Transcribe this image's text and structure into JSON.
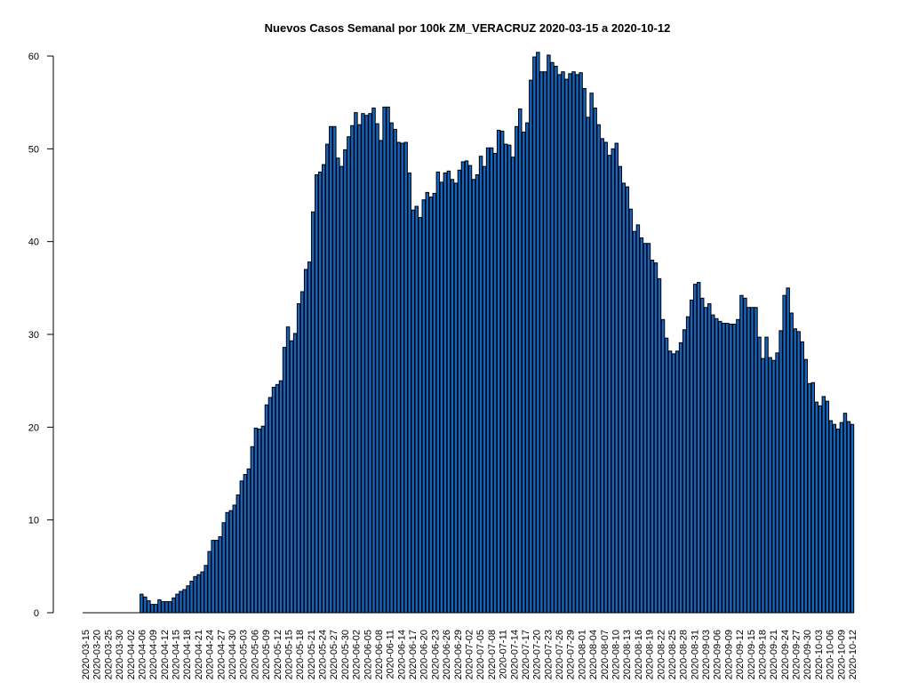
{
  "chart_data": {
    "type": "bar",
    "title": "Nuevos Casos Semanal por 100k ZM_VERACRUZ 2020-03-15 a 2020-10-12",
    "xlabel": "",
    "ylabel": "",
    "start_date": "2020-03-15",
    "tick_labels": [
      "2020-03-15",
      "2020-03-20",
      "2020-03-25",
      "2020-03-30",
      "2020-04-02",
      "2020-04-06",
      "2020-04-09",
      "2020-04-12",
      "2020-04-15",
      "2020-04-18",
      "2020-04-21",
      "2020-04-24",
      "2020-04-27",
      "2020-04-30",
      "2020-05-03",
      "2020-05-06",
      "2020-05-09",
      "2020-05-12",
      "2020-05-15",
      "2020-05-18",
      "2020-05-21",
      "2020-05-24",
      "2020-05-27",
      "2020-05-30",
      "2020-06-02",
      "2020-06-05",
      "2020-06-08",
      "2020-06-11",
      "2020-06-14",
      "2020-06-17",
      "2020-06-20",
      "2020-06-23",
      "2020-06-26",
      "2020-06-29",
      "2020-07-02",
      "2020-07-05",
      "2020-07-08",
      "2020-07-11",
      "2020-07-14",
      "2020-07-17",
      "2020-07-20",
      "2020-07-23",
      "2020-07-26",
      "2020-07-29",
      "2020-08-01",
      "2020-08-04",
      "2020-08-07",
      "2020-08-10",
      "2020-08-13",
      "2020-08-16",
      "2020-08-19",
      "2020-08-22",
      "2020-08-25",
      "2020-08-28",
      "2020-08-31",
      "2020-09-03",
      "2020-09-06",
      "2020-09-09",
      "2020-09-12",
      "2020-09-15",
      "2020-09-18",
      "2020-09-21",
      "2020-09-24",
      "2020-09-27",
      "2020-09-30",
      "2020-10-03",
      "2020-10-06",
      "2020-10-09",
      "2020-10-12"
    ],
    "values": [
      0,
      0,
      0,
      0,
      0,
      0,
      0,
      0,
      0,
      0,
      0,
      0,
      0,
      0,
      0,
      0,
      2.0,
      1.7,
      1.3,
      0.9,
      0.9,
      1.4,
      1.2,
      1.2,
      1.2,
      1.6,
      2.0,
      2.3,
      2.5,
      2.9,
      3.4,
      3.9,
      4.1,
      4.4,
      5.1,
      6.6,
      7.8,
      7.8,
      8.2,
      9.7,
      10.8,
      11.0,
      11.6,
      12.7,
      14.2,
      14.9,
      15.5,
      17.9,
      19.9,
      19.8,
      20.1,
      22.4,
      23.2,
      24.3,
      24.6,
      25.0,
      28.6,
      30.8,
      29.3,
      30.1,
      33.3,
      34.6,
      37.0,
      37.8,
      43.2,
      47.2,
      47.5,
      48.3,
      50.5,
      52.4,
      52.4,
      49.0,
      48.1,
      49.9,
      51.3,
      52.5,
      53.9,
      52.6,
      53.8,
      53.6,
      53.8,
      54.4,
      52.7,
      50.9,
      54.5,
      54.5,
      52.8,
      52.1,
      50.7,
      50.6,
      50.7,
      47.4,
      43.4,
      43.8,
      42.6,
      44.5,
      45.3,
      44.8,
      45.2,
      47.5,
      46.4,
      47.4,
      47.6,
      46.7,
      46.3,
      47.7,
      48.6,
      48.7,
      48.2,
      46.7,
      47.2,
      49.2,
      48.1,
      50.1,
      50.1,
      49.5,
      52.0,
      51.9,
      50.5,
      50.4,
      49.1,
      52.4,
      54.3,
      51.8,
      52.8,
      57.4,
      59.9,
      60.4,
      58.3,
      58.3,
      60.1,
      59.3,
      58.9,
      58.0,
      58.3,
      57.5,
      58.1,
      58.3,
      58.0,
      58.2,
      56.5,
      53.4,
      56.0,
      54.4,
      52.6,
      51.1,
      50.7,
      49.3,
      50.0,
      50.6,
      48.1,
      46.3,
      45.9,
      43.5,
      41.1,
      41.8,
      40.4,
      39.8,
      39.8,
      38.0,
      37.7,
      36.0,
      31.6,
      29.6,
      28.2,
      27.9,
      28.2,
      29.1,
      30.5,
      31.9,
      33.7,
      35.4,
      35.6,
      33.9,
      32.9,
      33.3,
      32.1,
      31.7,
      31.4,
      31.2,
      31.2,
      31.1,
      31.1,
      31.6,
      34.2,
      33.9,
      32.9,
      32.9,
      32.9,
      29.7,
      27.4,
      29.7,
      27.5,
      27.2,
      28.0,
      30.4,
      34.2,
      35.0,
      32.3,
      30.6,
      30.3,
      29.2,
      27.3,
      24.7,
      24.8,
      22.7,
      22.3,
      23.3,
      22.8,
      20.7,
      20.3,
      19.8,
      20.5,
      21.5,
      20.6,
      20.3
    ],
    "ylim": [
      0,
      60
    ],
    "yticks": [
      0,
      10,
      20,
      30,
      40,
      50,
      60
    ],
    "grid": false,
    "legend": "none",
    "bar_color": "#1565C0",
    "bar_edge_color": "#000000"
  }
}
